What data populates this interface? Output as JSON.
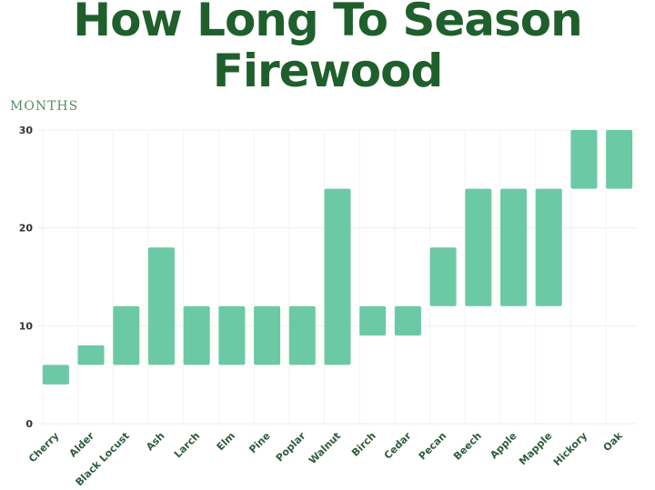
{
  "chart_data": {
    "type": "bar",
    "subtype": "floating-range",
    "title": "How Long To Season Firewood",
    "ylabel": "MONTHS",
    "xlabel": "",
    "ylim": [
      0,
      30
    ],
    "yticks": [
      0,
      10,
      20,
      30
    ],
    "grid": true,
    "bar_color": "#6cc9a6",
    "title_color": "#1f5f2c",
    "categories": [
      "Cherry",
      "Alder",
      "Black Locust",
      "Ash",
      "Larch",
      "Elm",
      "Pine",
      "Poplar",
      "Walnut",
      "Birch",
      "Cedar",
      "Pecan",
      "Beech",
      "Apple",
      "Mapple",
      "Hickory",
      "Oak"
    ],
    "ranges": [
      [
        4,
        6
      ],
      [
        6,
        8
      ],
      [
        6,
        12
      ],
      [
        6,
        18
      ],
      [
        6,
        12
      ],
      [
        6,
        12
      ],
      [
        6,
        12
      ],
      [
        6,
        12
      ],
      [
        6,
        24
      ],
      [
        9,
        12
      ],
      [
        9,
        12
      ],
      [
        12,
        18
      ],
      [
        12,
        24
      ],
      [
        12,
        24
      ],
      [
        12,
        24
      ],
      [
        24,
        30
      ],
      [
        24,
        30
      ]
    ]
  }
}
